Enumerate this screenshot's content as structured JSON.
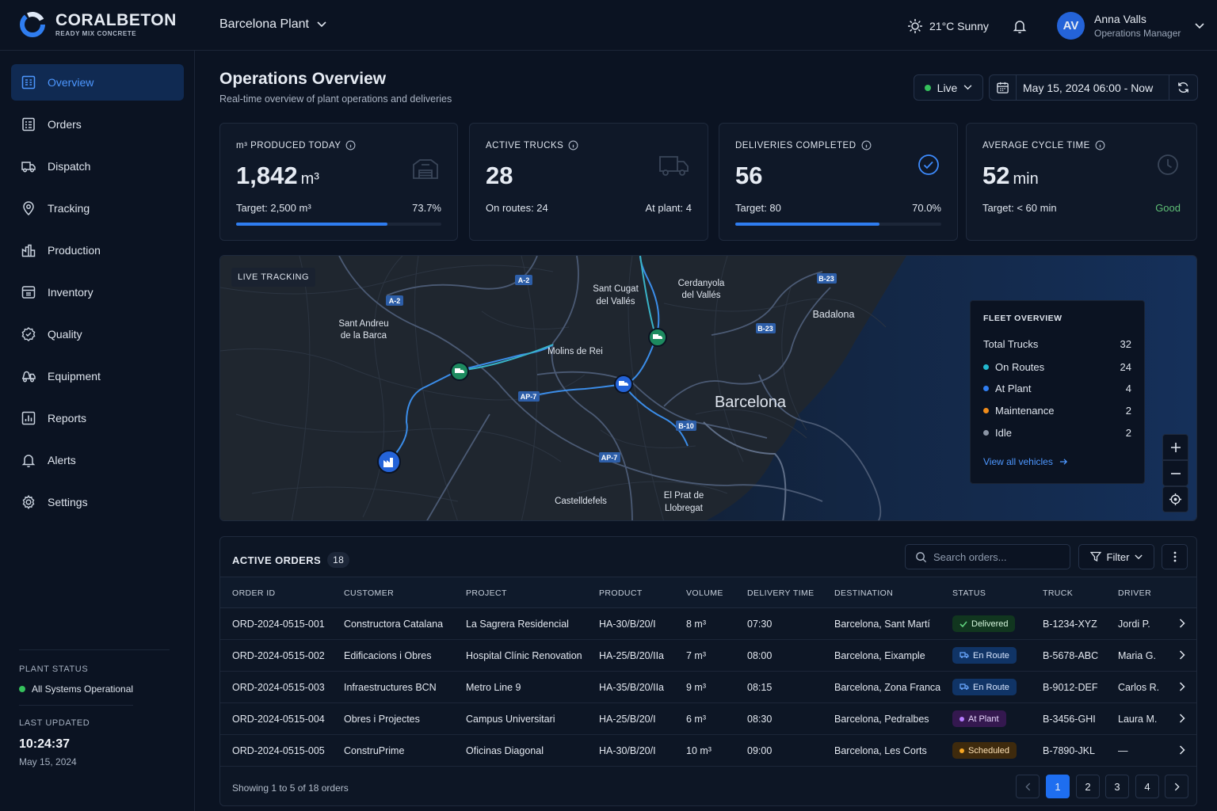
{
  "brand": {
    "name": "CORALBETON",
    "tagline": "READY MIX CONCRETE"
  },
  "header": {
    "plant": "Barcelona Plant",
    "weather": "21°C  Sunny",
    "user": {
      "initials": "AV",
      "name": "Anna Valls",
      "role": "Operations Manager"
    }
  },
  "sidebar": {
    "items": [
      {
        "label": "Overview",
        "icon": "overview-icon"
      },
      {
        "label": "Orders",
        "icon": "orders-icon"
      },
      {
        "label": "Dispatch",
        "icon": "truck-icon"
      },
      {
        "label": "Tracking",
        "icon": "map-pin-icon"
      },
      {
        "label": "Production",
        "icon": "factory-icon"
      },
      {
        "label": "Inventory",
        "icon": "inventory-icon"
      },
      {
        "label": "Quality",
        "icon": "quality-badge-icon"
      },
      {
        "label": "Equipment",
        "icon": "mixer-truck-icon"
      },
      {
        "label": "Reports",
        "icon": "bar-chart-icon"
      },
      {
        "label": "Alerts",
        "icon": "bell-icon"
      },
      {
        "label": "Settings",
        "icon": "gear-icon"
      }
    ],
    "active": "Overview",
    "plant_status_label": "PLANT STATUS",
    "plant_status": "All Systems Operational",
    "last_updated_label": "LAST UPDATED",
    "last_updated_time": "10:24:37",
    "last_updated_date": "May 15, 2024"
  },
  "page": {
    "title": "Operations Overview",
    "subtitle": "Real-time overview of plant operations and deliveries",
    "live": "Live",
    "date_range": "May 15, 2024 06:00 - Now"
  },
  "kpis": {
    "produced": {
      "label": "m³ PRODUCED TODAY",
      "value": "1,842",
      "unit": "m³",
      "left": "Target:  2,500 m³",
      "right": "73.7%",
      "progress": 0.737
    },
    "trucks": {
      "label": "ACTIVE TRUCKS",
      "value": "28",
      "left": "On routes:  24",
      "right": "At plant:  4"
    },
    "deliveries": {
      "label": "DELIVERIES COMPLETED",
      "value": "56",
      "left": "Target: 80",
      "right": "70.0%",
      "progress": 0.7
    },
    "cycle": {
      "label": "AVERAGE CYCLE TIME",
      "value": "52",
      "unit": "min",
      "left": "Target:  < 60 min",
      "right": "Good"
    }
  },
  "map": {
    "tag": "LIVE TRACKING",
    "places": {
      "sant_andreu_1": "Sant Andreu",
      "sant_andreu_2": "de la Barca",
      "sant_cugat_1": "Sant Cugat",
      "sant_cugat_2": "del Vallés",
      "cerdanyola_1": "Cerdanyola",
      "cerdanyola_2": "del Vallés",
      "molins": "Molins de Rei",
      "badalona": "Badalona",
      "barcelona": "Barcelona",
      "castelldefels": "Castelldefels",
      "prat_1": "El Prat de",
      "prat_2": "Llobregat"
    },
    "roads": {
      "a2a": "A-2",
      "a2b": "A-2",
      "b23a": "B-23",
      "b23b": "B-23",
      "ap7a": "AP-7",
      "ap7b": "AP-7",
      "b10": "B-10"
    },
    "fleet": {
      "title": "FLEET OVERVIEW",
      "total_label": "Total Trucks",
      "total": "32",
      "rows": [
        {
          "label": "On Routes",
          "value": "24",
          "color": "#22b8cf"
        },
        {
          "label": "At Plant",
          "value": "4",
          "color": "#2f7df0"
        },
        {
          "label": "Maintenance",
          "value": "2",
          "color": "#f08c1a"
        },
        {
          "label": "Idle",
          "value": "2",
          "color": "#8a94a4"
        }
      ],
      "link": "View all vehicles"
    }
  },
  "orders": {
    "title": "ACTIVE ORDERS",
    "count": "18",
    "search_placeholder": "Search orders...",
    "filter": "Filter",
    "columns": [
      "ORDER ID",
      "CUSTOMER",
      "PROJECT",
      "PRODUCT",
      "VOLUME",
      "DELIVERY TIME",
      "DESTINATION",
      "STATUS",
      "TRUCK",
      "DRIVER"
    ],
    "rows": [
      [
        "ORD-2024-0515-001",
        "Constructora Catalana",
        "La Sagrera Residencial",
        "HA-30/B/20/I",
        "8 m³",
        "07:30",
        "Barcelona, Sant Martí",
        "Delivered",
        "B-1234-XYZ",
        "Jordi P."
      ],
      [
        "ORD-2024-0515-002",
        "Edificacions i Obres",
        "Hospital Clínic Renovation",
        "HA-25/B/20/IIa",
        "7 m³",
        "08:00",
        "Barcelona, Eixample",
        "En Route",
        "B-5678-ABC",
        "Maria G."
      ],
      [
        "ORD-2024-0515-003",
        "Infraestructures BCN",
        "Metro Line 9",
        "HA-35/B/20/IIa",
        "9 m³",
        "08:15",
        "Barcelona, Zona Franca",
        "En Route",
        "B-9012-DEF",
        "Carlos R."
      ],
      [
        "ORD-2024-0515-004",
        "Obres i Projectes",
        "Campus Universitari",
        "HA-25/B/20/I",
        "6 m³",
        "08:30",
        "Barcelona, Pedralbes",
        "At Plant",
        "B-3456-GHI",
        "Laura M."
      ],
      [
        "ORD-2024-0515-005",
        "ConstruPrime",
        "Oficinas Diagonal",
        "HA-30/B/20/I",
        "10 m³",
        "09:00",
        "Barcelona, Les Corts",
        "Scheduled",
        "B-7890-JKL",
        "—"
      ]
    ],
    "footer": "Showing 1 to 5 of 18 orders",
    "pages": [
      "1",
      "2",
      "3",
      "4"
    ],
    "current_page": "1"
  },
  "colors": {
    "accent": "#2f7df0",
    "good": "#5fbf76",
    "background": "#0b1322"
  }
}
